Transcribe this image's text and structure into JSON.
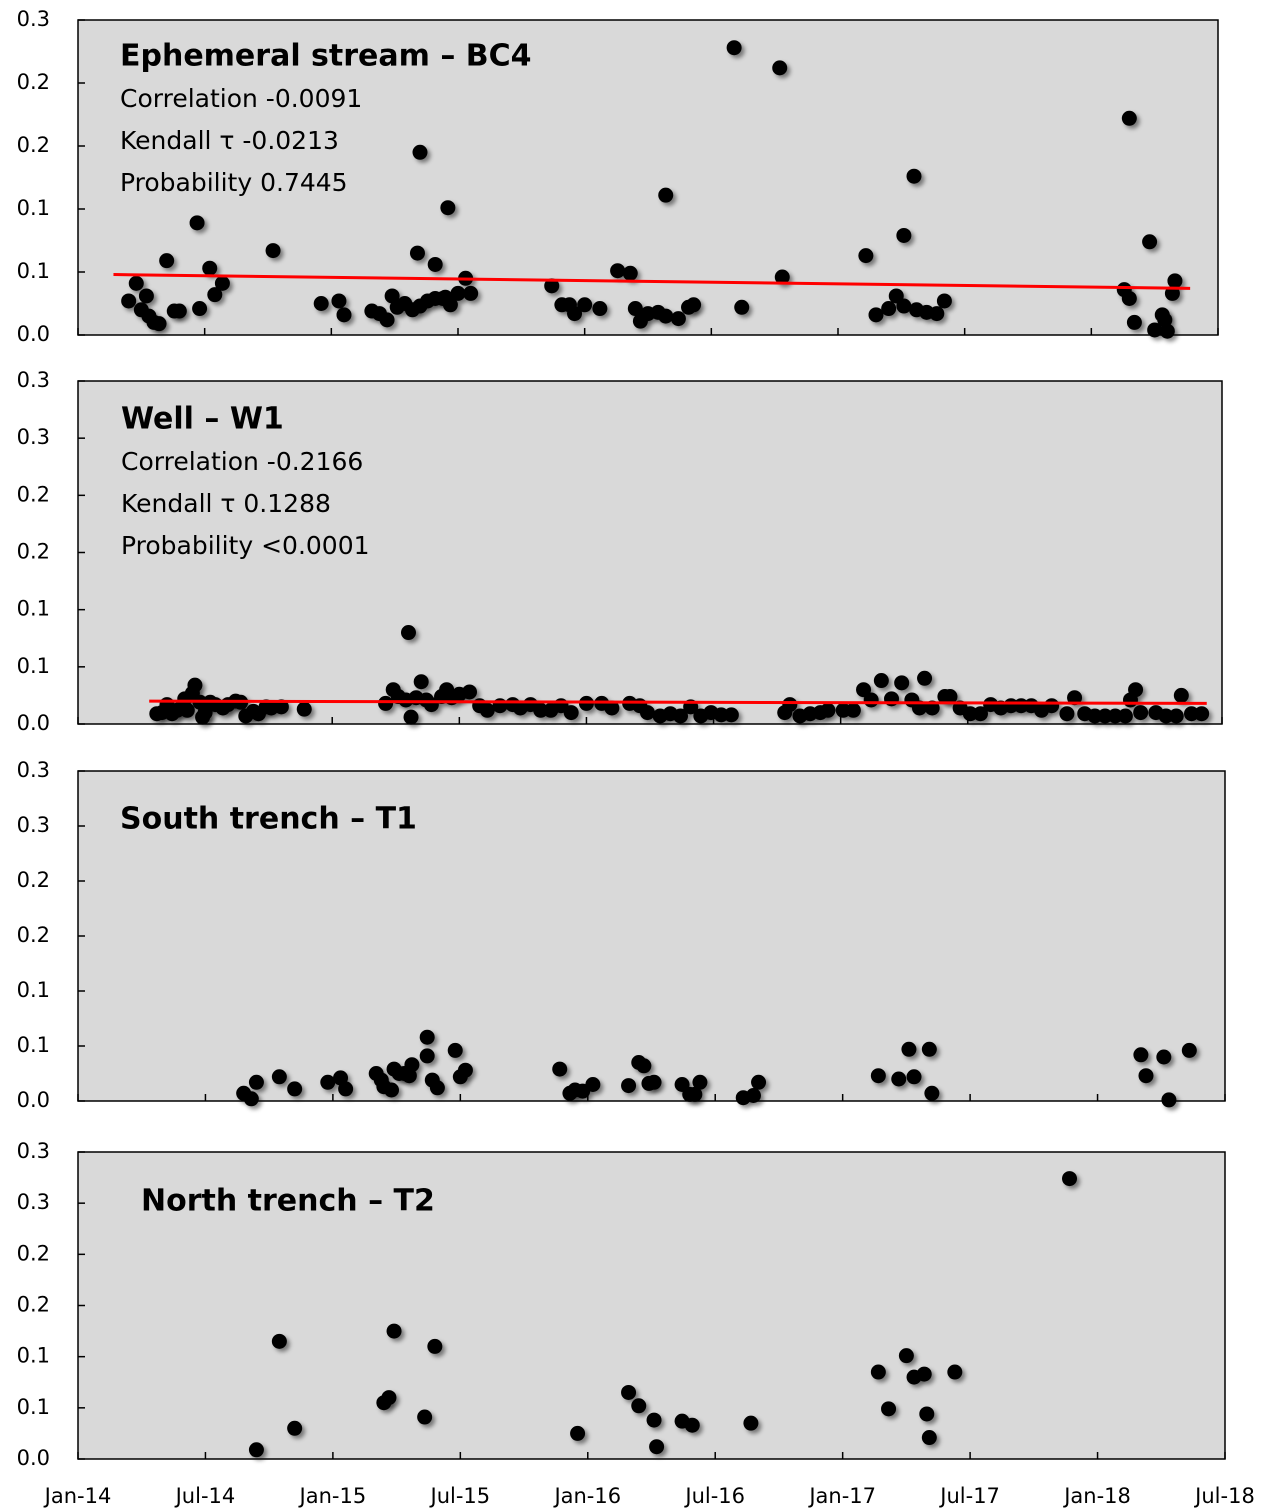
{
  "chart_data": [
    {
      "type": "scatter",
      "title": "Ephemeral stream – BC4",
      "annotations": [
        "Correlation -0.0091",
        "Kendall τ -0.0213",
        "Probability 0.7445"
      ],
      "color": "#000000",
      "x": [
        2014.2,
        2014.23,
        2014.25,
        2014.27,
        2014.28,
        2014.3,
        2014.32,
        2014.35,
        2014.38,
        2014.4,
        2014.47,
        2014.48,
        2014.52,
        2014.54,
        2014.57,
        2014.77,
        2014.96,
        2015.03,
        2015.05,
        2015.16,
        2015.19,
        2015.22,
        2015.24,
        2015.26,
        2015.29,
        2015.32,
        2015.34,
        2015.35,
        2015.35,
        2015.38,
        2015.41,
        2015.41,
        2015.44,
        2015.45,
        2015.46,
        2015.47,
        2015.5,
        2015.53,
        2015.55,
        2015.87,
        2015.91,
        2015.94,
        2015.96,
        2016.0,
        2016.06,
        2016.13,
        2016.18,
        2016.2,
        2016.22,
        2016.25,
        2016.29,
        2016.32,
        2016.32,
        2016.37,
        2016.41,
        2016.43,
        2016.59,
        2016.62,
        2016.77,
        2016.78,
        2017.11,
        2017.15,
        2017.2,
        2017.23,
        2017.26,
        2017.26,
        2017.3,
        2017.31,
        2017.35,
        2017.39,
        2017.42,
        2018.13,
        2018.15,
        2018.15,
        2018.17,
        2018.23,
        2018.25,
        2018.28,
        2018.29,
        2018.3,
        2018.32,
        2018.33
      ],
      "values": [
        0.027,
        0.041,
        0.02,
        0.031,
        0.015,
        0.01,
        0.009,
        0.059,
        0.019,
        0.019,
        0.089,
        0.021,
        0.053,
        0.032,
        0.041,
        0.067,
        0.025,
        0.027,
        0.016,
        0.019,
        0.017,
        0.012,
        0.031,
        0.022,
        0.025,
        0.02,
        0.065,
        0.145,
        0.023,
        0.027,
        0.056,
        0.029,
        0.029,
        0.03,
        0.101,
        0.024,
        0.033,
        0.045,
        0.033,
        0.039,
        0.024,
        0.024,
        0.017,
        0.024,
        0.021,
        0.051,
        0.049,
        0.021,
        0.011,
        0.017,
        0.018,
        0.015,
        0.111,
        0.013,
        0.022,
        0.024,
        0.228,
        0.022,
        0.212,
        0.046,
        0.063,
        0.016,
        0.021,
        0.031,
        0.079,
        0.023,
        0.126,
        0.02,
        0.018,
        0.017,
        0.027,
        0.036,
        0.172,
        0.029,
        0.01,
        0.074,
        0.004,
        0.016,
        0.012,
        0.003,
        0.033,
        0.043
      ],
      "trend": {
        "color": "#ff0000",
        "x": [
          2014.14,
          2018.39
        ],
        "values": [
          0.048,
          0.037
        ]
      },
      "xlim": [
        2014,
        2018.5
      ],
      "ylim": [
        0,
        0.25
      ],
      "yticks": [
        {
          "value": 0,
          "label": "0.0"
        },
        {
          "value": 0.05,
          "label": "0.1"
        },
        0.1,
        {
          "value": 0.15,
          "label": "0.2"
        },
        0.2,
        {
          "value": 0.25,
          "label": "0.3"
        }
      ]
    },
    {
      "type": "scatter",
      "title": "Well – W1",
      "annotations": [
        "Correlation -0.2166",
        "Kendall τ 0.1288",
        "Probability <0.0001"
      ],
      "color": "#000000",
      "x": [
        2014.31,
        2014.33,
        2014.35,
        2014.37,
        2014.39,
        2014.41,
        2014.42,
        2014.43,
        2014.45,
        2014.46,
        2014.48,
        2014.49,
        2014.5,
        2014.52,
        2014.54,
        2014.57,
        2014.59,
        2014.62,
        2014.64,
        2014.66,
        2014.69,
        2014.71,
        2014.74,
        2014.76,
        2014.8,
        2014.89,
        2015.21,
        2015.24,
        2015.26,
        2015.29,
        2015.3,
        2015.31,
        2015.33,
        2015.35,
        2015.37,
        2015.39,
        2015.43,
        2015.45,
        2015.47,
        2015.5,
        2015.54,
        2015.58,
        2015.61,
        2015.66,
        2015.71,
        2015.74,
        2015.78,
        2015.82,
        2015.86,
        2015.9,
        2015.94,
        2016.0,
        2016.06,
        2016.1,
        2016.17,
        2016.21,
        2016.24,
        2016.29,
        2016.33,
        2016.37,
        2016.41,
        2016.45,
        2016.49,
        2016.53,
        2016.57,
        2016.78,
        2016.8,
        2016.84,
        2016.88,
        2016.92,
        2016.95,
        2017.01,
        2017.05,
        2017.09,
        2017.12,
        2017.16,
        2017.2,
        2017.24,
        2017.28,
        2017.31,
        2017.33,
        2017.36,
        2017.41,
        2017.43,
        2017.47,
        2017.51,
        2017.55,
        2017.59,
        2017.63,
        2017.67,
        2017.71,
        2017.75,
        2017.79,
        2017.83,
        2017.89,
        2017.92,
        2017.96,
        2018.0,
        2018.04,
        2018.08,
        2018.12,
        2018.14,
        2018.16,
        2018.18,
        2018.24,
        2018.28,
        2018.32,
        2018.34,
        2018.38,
        2018.42
      ],
      "values": [
        0.009,
        0.01,
        0.017,
        0.009,
        0.012,
        0.015,
        0.022,
        0.012,
        0.027,
        0.034,
        0.019,
        0.006,
        0.01,
        0.019,
        0.017,
        0.014,
        0.017,
        0.02,
        0.019,
        0.007,
        0.011,
        0.009,
        0.015,
        0.014,
        0.015,
        0.013,
        0.018,
        0.03,
        0.024,
        0.021,
        0.08,
        0.006,
        0.023,
        0.037,
        0.021,
        0.017,
        0.024,
        0.03,
        0.023,
        0.026,
        0.028,
        0.016,
        0.012,
        0.016,
        0.017,
        0.014,
        0.017,
        0.012,
        0.012,
        0.016,
        0.01,
        0.018,
        0.018,
        0.014,
        0.018,
        0.016,
        0.01,
        0.007,
        0.009,
        0.007,
        0.015,
        0.007,
        0.01,
        0.008,
        0.008,
        0.01,
        0.017,
        0.007,
        0.009,
        0.01,
        0.012,
        0.012,
        0.012,
        0.03,
        0.021,
        0.038,
        0.022,
        0.036,
        0.021,
        0.014,
        0.04,
        0.014,
        0.024,
        0.024,
        0.014,
        0.009,
        0.009,
        0.017,
        0.014,
        0.016,
        0.016,
        0.016,
        0.012,
        0.016,
        0.009,
        0.023,
        0.009,
        0.007,
        0.007,
        0.007,
        0.007,
        0.021,
        0.03,
        0.01,
        0.01,
        0.007,
        0.007,
        0.025,
        0.009,
        0.009
      ],
      "trend": {
        "color": "#ff0000",
        "x": [
          2014.28,
          2018.44
        ],
        "values": [
          0.02,
          0.018
        ]
      },
      "xlim": [
        2014,
        2018.5
      ],
      "ylim": [
        0,
        0.3
      ],
      "yticks": [
        {
          "value": 0,
          "label": "0.0"
        },
        {
          "value": 0.05,
          "label": "0.1"
        },
        0.1,
        {
          "value": 0.15,
          "label": "0.2"
        },
        0.2,
        {
          "value": 0.25,
          "label": "0.3"
        },
        0.3
      ]
    },
    {
      "type": "scatter",
      "title": "South trench – T1",
      "color": "#000000",
      "x": [
        2014.65,
        2014.68,
        2014.7,
        2014.79,
        2014.85,
        2014.98,
        2015.03,
        2015.05,
        2015.17,
        2015.19,
        2015.2,
        2015.23,
        2015.24,
        2015.26,
        2015.28,
        2015.3,
        2015.31,
        2015.37,
        2015.37,
        2015.39,
        2015.41,
        2015.48,
        2015.5,
        2015.52,
        2015.89,
        2015.93,
        2015.95,
        2015.98,
        2016.02,
        2016.16,
        2016.2,
        2016.22,
        2016.24,
        2016.26,
        2016.37,
        2016.4,
        2016.42,
        2016.44,
        2016.61,
        2016.65,
        2016.67,
        2017.14,
        2017.22,
        2017.26,
        2017.28,
        2017.34,
        2017.35,
        2018.17,
        2018.19,
        2018.26,
        2018.28,
        2018.36
      ],
      "values": [
        0.007,
        0.002,
        0.017,
        0.022,
        0.011,
        0.017,
        0.021,
        0.011,
        0.025,
        0.019,
        0.013,
        0.01,
        0.029,
        0.025,
        0.025,
        0.023,
        0.033,
        0.058,
        0.041,
        0.019,
        0.012,
        0.046,
        0.022,
        0.028,
        0.029,
        0.007,
        0.01,
        0.009,
        0.015,
        0.014,
        0.035,
        0.032,
        0.016,
        0.017,
        0.015,
        0.006,
        0.006,
        0.017,
        0.003,
        0.005,
        0.017,
        0.023,
        0.02,
        0.047,
        0.022,
        0.047,
        0.007,
        0.042,
        0.023,
        0.04,
        0.001,
        0.046
      ],
      "xlim": [
        2014,
        2018.5
      ],
      "ylim": [
        0,
        0.3
      ],
      "yticks": [
        {
          "value": 0,
          "label": "0.0"
        },
        {
          "value": 0.05,
          "label": "0.1"
        },
        0.1,
        {
          "value": 0.15,
          "label": "0.2"
        },
        0.2,
        {
          "value": 0.25,
          "label": "0.3"
        },
        0.3
      ]
    },
    {
      "type": "scatter",
      "title": "North trench – T2",
      "color": "#000000",
      "x": [
        2014.7,
        2014.79,
        2014.85,
        2015.2,
        2015.22,
        2015.24,
        2015.36,
        2015.4,
        2015.96,
        2016.16,
        2016.2,
        2016.26,
        2016.27,
        2016.37,
        2016.41,
        2016.64,
        2017.14,
        2017.18,
        2017.25,
        2017.28,
        2017.32,
        2017.33,
        2017.34,
        2017.44,
        2017.89
      ],
      "values": [
        0.009,
        0.115,
        0.03,
        0.055,
        0.06,
        0.125,
        0.041,
        0.11,
        0.025,
        0.065,
        0.052,
        0.038,
        0.012,
        0.037,
        0.033,
        0.035,
        0.085,
        0.049,
        0.101,
        0.08,
        0.083,
        0.044,
        0.021,
        0.085,
        0.274
      ],
      "xlim": [
        2014,
        2018.5
      ],
      "ylim": [
        0,
        0.3
      ],
      "yticks": [
        {
          "value": 0,
          "label": "0.0"
        },
        {
          "value": 0.05,
          "label": "0.1"
        },
        0.1,
        {
          "value": 0.15,
          "label": "0.2"
        },
        0.2,
        {
          "value": 0.25,
          "label": "0.3"
        },
        0.3
      ],
      "xticks": [
        {
          "value": 2014,
          "label": "Jan-14"
        },
        {
          "value": 2014.5,
          "label": "Jul-14"
        },
        {
          "value": 2015,
          "label": "Jan-15"
        },
        {
          "value": 2015.5,
          "label": "Jul-15"
        },
        {
          "value": 2016,
          "label": "Jan-16"
        },
        {
          "value": 2016.5,
          "label": "Jul-16"
        },
        {
          "value": 2017,
          "label": "Jan-17"
        },
        {
          "value": 2017.5,
          "label": "Jul-17"
        },
        {
          "value": 2018,
          "label": "Jan-18"
        },
        {
          "value": 2018.5,
          "label": "Jul-18"
        }
      ]
    }
  ]
}
